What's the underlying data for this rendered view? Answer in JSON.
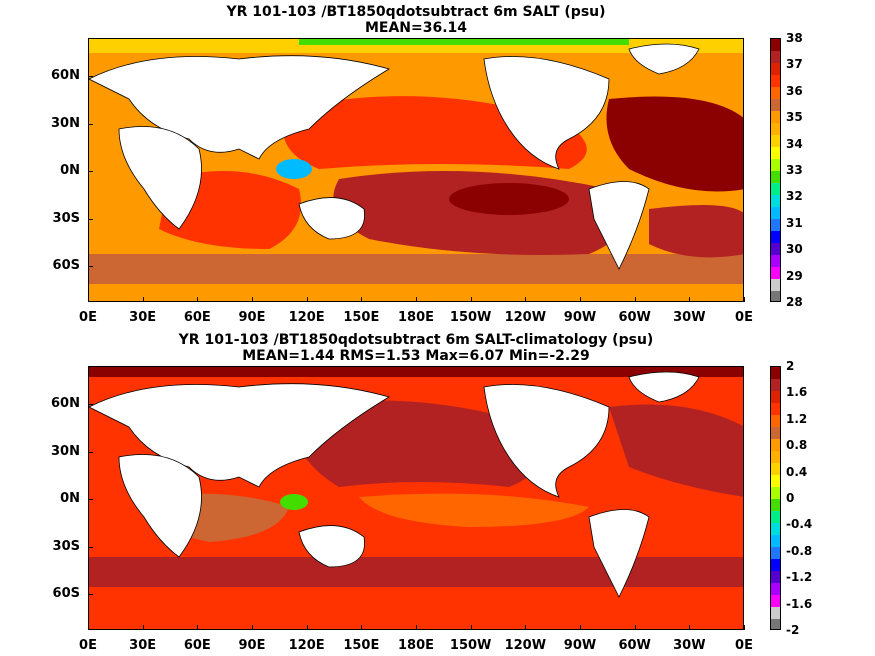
{
  "panels": [
    {
      "title_line1": "YR 101-103 /BT1850qdotsubtract 6m SALT (psu)",
      "title_line2": "MEAN=36.14",
      "colorbar": {
        "labels": [
          "38",
          "37",
          "36",
          "35",
          "34",
          "33",
          "32",
          "31",
          "30",
          "29",
          "28"
        ],
        "colors": [
          "#8b0000",
          "#b22222",
          "#dd2200",
          "#ff3300",
          "#ff6600",
          "#cc6633",
          "#ff9900",
          "#ffb000",
          "#ffd000",
          "#ffff00",
          "#aaff00",
          "#44dd00",
          "#00ee88",
          "#00dddd",
          "#00bbff",
          "#2277ff",
          "#0000ff",
          "#5500cc",
          "#aa00ff",
          "#ff00ff",
          "#cccccc",
          "#777777"
        ]
      },
      "fields": {
        "base": "#ff9900",
        "zones": [
          {
            "name": "atlantic-subtropics-north",
            "color": "#8b0000"
          },
          {
            "name": "atlantic-subtropics-south",
            "color": "#b22222"
          },
          {
            "name": "pacific-north-band",
            "color": "#ff3300"
          },
          {
            "name": "pacific-south-core",
            "color": "#8b0000"
          },
          {
            "name": "pacific-south-ring",
            "color": "#b22222"
          },
          {
            "name": "indian-ocean",
            "color": "#ff3300"
          },
          {
            "name": "southern-band",
            "color": "#cc6633"
          },
          {
            "name": "arctic-fresh",
            "color": "#ffd000"
          },
          {
            "name": "arctic-green",
            "color": "#44dd00"
          },
          {
            "name": "maritime-continent",
            "color": "#00bbff"
          }
        ]
      }
    },
    {
      "title_line1": "YR 101-103 /BT1850qdotsubtract 6m SALT-climatology (psu)",
      "title_line2": "MEAN=1.44   RMS=1.53   Max=6.07   Min=-2.29",
      "colorbar": {
        "labels": [
          "2",
          "1.6",
          "1.2",
          "0.8",
          "0.4",
          "0",
          "-0.4",
          "-0.8",
          "-1.2",
          "-1.6",
          "-2"
        ],
        "colors": [
          "#8b0000",
          "#b22222",
          "#dd2200",
          "#ff3300",
          "#ff6600",
          "#cc6633",
          "#ff9900",
          "#ffb000",
          "#ffd000",
          "#ffff00",
          "#aaff00",
          "#44dd00",
          "#00ee88",
          "#00dddd",
          "#00bbff",
          "#2277ff",
          "#0000ff",
          "#5500cc",
          "#aa00ff",
          "#ff00ff",
          "#cccccc",
          "#777777"
        ]
      },
      "fields": {
        "base": "#ff3300",
        "zones": [
          {
            "name": "north-pacific-high",
            "color": "#b22222"
          },
          {
            "name": "north-atlantic-high",
            "color": "#b22222"
          },
          {
            "name": "southern-band",
            "color": "#b22222"
          },
          {
            "name": "tropical-indian",
            "color": "#cc6633"
          },
          {
            "name": "equatorial-pacific",
            "color": "#ff6600"
          },
          {
            "name": "arctic-high",
            "color": "#8b0000"
          },
          {
            "name": "maritime-continent",
            "color": "#44dd00"
          }
        ]
      }
    }
  ],
  "lat_labels": [
    "60N",
    "30N",
    "0N",
    "30S",
    "60S"
  ],
  "lon_labels": [
    "0E",
    "30E",
    "60E",
    "90E",
    "120E",
    "150E",
    "180E",
    "150W",
    "120W",
    "90W",
    "60W",
    "30W",
    "0E"
  ],
  "land_color": "#ffffff"
}
